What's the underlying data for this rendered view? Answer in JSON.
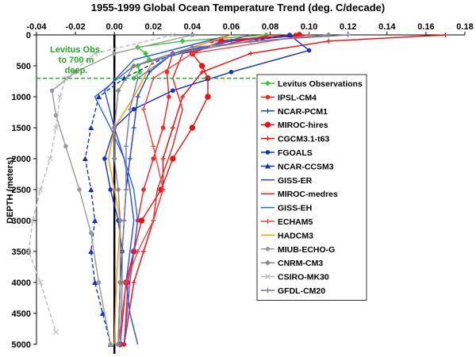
{
  "chart_data": {
    "type": "line",
    "title": "1955-1999 Global Ocean Temperature Trend (deg. C/decade)",
    "xlabel": "",
    "ylabel": "DEPTH (meters)",
    "xlim": [
      -0.04,
      0.18
    ],
    "ylim": [
      0,
      5000
    ],
    "y_inverted": true,
    "x_axis_position": "top",
    "x_ticks": [
      -0.04,
      -0.02,
      0,
      0.02,
      0.04,
      0.06,
      0.08,
      0.1,
      0.12,
      0.14,
      0.16,
      0.18
    ],
    "x_tick_labels": [
      "-0.04",
      "-0.02",
      "0.00",
      "0.02",
      "0.04",
      "0.06",
      "0.08",
      "0.10",
      "0.12",
      "0.14",
      "0.16",
      "0.18"
    ],
    "y_ticks": [
      0,
      500,
      1000,
      1500,
      2000,
      2500,
      3000,
      3500,
      4000,
      4500,
      5000
    ],
    "y_tick_labels": [
      "0",
      "500",
      "1000",
      "1500",
      "2000",
      "2500",
      "3000",
      "3500",
      "4000",
      "4500",
      "5000"
    ],
    "grid": false,
    "legend_position": "right",
    "annotation": {
      "lines": [
        "Levitus Obs.",
        "to 700 m",
        "deep."
      ],
      "color": "#22aa22",
      "reference_depth": 700
    },
    "zero_line": {
      "x": 0,
      "color": "#000000"
    },
    "series": [
      {
        "name": "Levitus Observations",
        "color": "#33cc33",
        "marker": "diamond",
        "x": [
          0.078,
          0.035,
          0.012,
          0.016,
          0.018,
          0.012,
          0.013,
          0.01
        ],
        "y": [
          0,
          100,
          200,
          300,
          400,
          500,
          600,
          700
        ]
      },
      {
        "name": "IPSL-CM4",
        "color": "#ff2020",
        "marker": "circle-small",
        "x": [
          0.093,
          0.05,
          0.03,
          0.027,
          0.028,
          0.025,
          0.02,
          0.015,
          0.012,
          0.01,
          0.007,
          0.005
        ],
        "y": [
          0,
          100,
          300,
          600,
          1000,
          1500,
          2000,
          2500,
          3000,
          3500,
          4000,
          5000
        ]
      },
      {
        "name": "NCAR-PCM1",
        "color": "#2040cc",
        "marker": "plus",
        "x": [
          0.1,
          0.06,
          0.03,
          0.018,
          0.012,
          0.01,
          0.008,
          0.006,
          0.005,
          0.004,
          0.003,
          0.002
        ],
        "y": [
          0,
          100,
          300,
          600,
          1000,
          1500,
          2000,
          2500,
          3000,
          3500,
          4000,
          5000
        ]
      },
      {
        "name": "MIROC-hires",
        "color": "#ee1111",
        "marker": "circle",
        "x": [
          0.095,
          0.055,
          0.04,
          0.045,
          0.048,
          0.048,
          0.04,
          0.03,
          0.024,
          0.014,
          0.01,
          0.006,
          0.003
        ],
        "y": [
          0,
          100,
          300,
          500,
          700,
          1000,
          1500,
          2000,
          2500,
          3000,
          3500,
          4000,
          5000
        ]
      },
      {
        "name": "CGCM3.1-t63",
        "color": "#ff0000",
        "marker": "plus",
        "x": [
          0.17,
          0.11,
          0.07,
          0.045,
          0.035,
          0.03,
          0.025,
          0.025,
          0.02,
          0.015,
          0.01,
          0.005
        ],
        "y": [
          0,
          100,
          300,
          600,
          1000,
          1500,
          2000,
          2500,
          3000,
          3500,
          4000,
          5000
        ]
      },
      {
        "name": "FGOALS",
        "color": "#1030cc",
        "marker": "circle-small",
        "x": [
          0.09,
          0.1,
          0.06,
          0.03,
          0.01,
          0.0,
          -0.005,
          -0.002,
          0.002,
          0.004,
          0.003,
          0.002
        ],
        "y": [
          0,
          250,
          600,
          900,
          1200,
          1500,
          2000,
          2500,
          3000,
          3500,
          4000,
          5000
        ]
      },
      {
        "name": "NCAR-CCSM3",
        "color": "#1030cc",
        "marker": "triangle",
        "x": [
          0.09,
          0.03,
          0.005,
          -0.008,
          -0.012,
          -0.015,
          -0.012,
          -0.01,
          -0.012,
          -0.01,
          -0.006,
          -0.002
        ],
        "y": [
          0,
          300,
          700,
          1000,
          1500,
          2000,
          2500,
          3000,
          3500,
          4000,
          4500,
          5000
        ]
      },
      {
        "name": "GISS-ER",
        "color": "#2050ee",
        "marker": "none",
        "x": [
          0.06,
          0.01,
          -0.005,
          0.0,
          0.005,
          0.008,
          0.01,
          0.008,
          0.006,
          0.008,
          0.012
        ],
        "y": [
          0,
          400,
          900,
          1500,
          2000,
          2500,
          3000,
          3500,
          4000,
          4500,
          5000
        ]
      },
      {
        "name": "MIROC-medres",
        "color": "#ee2020",
        "marker": "none",
        "x": [
          0.08,
          0.035,
          0.03,
          0.035,
          0.03,
          0.022,
          0.02,
          0.015,
          0.01,
          0.005
        ],
        "y": [
          0,
          300,
          700,
          1200,
          1800,
          2500,
          3000,
          3500,
          4000,
          5000
        ]
      },
      {
        "name": "GISS-EH",
        "color": "#3060ee",
        "marker": "none",
        "x": [
          0.07,
          0.01,
          -0.01,
          -0.002,
          0.005,
          0.01,
          0.012,
          0.01,
          0.008,
          0.005
        ],
        "y": [
          0,
          500,
          1000,
          1500,
          2000,
          2500,
          3000,
          3500,
          4000,
          5000
        ]
      },
      {
        "name": "ECHAM5",
        "color": "#ff4040",
        "marker": "plus",
        "x": [
          0.1,
          0.04,
          0.02,
          0.015,
          0.02,
          0.025,
          0.02,
          0.012,
          0.006,
          0.002
        ],
        "y": [
          0,
          300,
          700,
          1200,
          1800,
          2500,
          3000,
          3500,
          4000,
          5000
        ]
      },
      {
        "name": "HADCM3",
        "color": "#ff9900",
        "marker": "none",
        "x": [
          0.06,
          0.02,
          0.01,
          0.0,
          -0.003,
          0.0,
          0.003,
          0.002,
          0.001,
          0.0
        ],
        "y": [
          0,
          400,
          1000,
          1500,
          2000,
          2500,
          3000,
          3500,
          4000,
          5000
        ]
      },
      {
        "name": "MIUB-ECHO-G",
        "color": "#999999",
        "marker": "circle-small",
        "x": [
          0.04,
          0.0,
          -0.02,
          -0.032,
          -0.03,
          -0.025,
          -0.018,
          -0.012,
          -0.008,
          -0.002
        ],
        "y": [
          0,
          300,
          600,
          900,
          1300,
          1800,
          2500,
          3200,
          4000,
          5000
        ]
      },
      {
        "name": "CNRM-CM3",
        "color": "#888888",
        "marker": "diamond",
        "x": [
          0.11,
          0.04,
          0.01,
          0.002,
          0.0,
          0.0,
          0.002,
          0.003,
          0.003,
          0.002
        ],
        "y": [
          0,
          200,
          500,
          900,
          1500,
          2000,
          2500,
          3000,
          4000,
          5000
        ]
      },
      {
        "name": "CSIRO-MK30",
        "color": "#bbbbbb",
        "marker": "x",
        "x": [
          0.03,
          -0.01,
          -0.025,
          -0.028,
          -0.03,
          -0.033,
          -0.038,
          -0.042,
          -0.044,
          -0.038,
          -0.03
        ],
        "y": [
          0,
          300,
          700,
          1000,
          1500,
          2000,
          2500,
          3000,
          3500,
          4000,
          4800
        ]
      },
      {
        "name": "GFDL-CM20",
        "color": "#7777aa",
        "marker": "plus",
        "x": [
          0.12,
          0.07,
          0.03,
          0.012,
          0.008,
          0.006,
          0.006,
          0.005,
          0.004,
          0.004,
          0.003
        ],
        "y": [
          0,
          100,
          300,
          700,
          1200,
          1800,
          2500,
          3000,
          3500,
          4000,
          5000
        ]
      }
    ]
  }
}
